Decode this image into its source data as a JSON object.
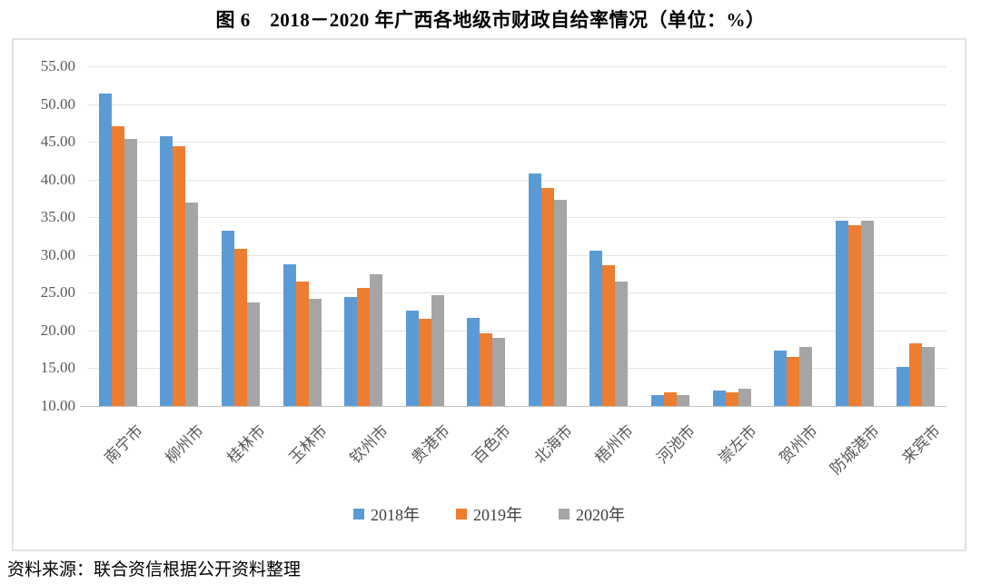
{
  "title": "图 6　2018－2020 年广西各地级市财政自给率情况（单位：%）",
  "source_note": "资料来源：联合资信根据公开资料整理",
  "colors": {
    "series_2018": "#5B9BD5",
    "series_2019": "#ED7D31",
    "series_2020": "#A5A5A5",
    "gridline": "#E4E4E4",
    "baseline": "#C0C0C0",
    "axis_text": "#595959",
    "chart_border": "#E3E3E3"
  },
  "chart_data": {
    "type": "bar",
    "title": "图 6　2018－2020 年广西各地级市财政自给率情况（单位：%）",
    "unit": "%",
    "categories": [
      "南宁市",
      "柳州市",
      "桂林市",
      "玉林市",
      "钦州市",
      "贵港市",
      "百色市",
      "北海市",
      "梧州市",
      "河池市",
      "崇左市",
      "贺州市",
      "防城港市",
      "来宾市"
    ],
    "series": [
      {
        "name": "2018年",
        "color": "#5B9BD5",
        "values": [
          51.4,
          45.7,
          33.2,
          28.8,
          24.4,
          22.6,
          21.7,
          40.8,
          30.6,
          11.4,
          12.1,
          17.3,
          34.5,
          15.2
        ]
      },
      {
        "name": "2019年",
        "color": "#ED7D31",
        "values": [
          47.1,
          44.4,
          30.8,
          26.5,
          25.6,
          21.6,
          19.6,
          38.9,
          28.7,
          11.8,
          11.8,
          16.5,
          33.9,
          18.3
        ]
      },
      {
        "name": "2020年",
        "color": "#A5A5A5",
        "values": [
          45.4,
          37.0,
          23.7,
          24.2,
          27.5,
          24.7,
          19.0,
          37.3,
          26.5,
          11.5,
          12.3,
          17.8,
          34.5,
          17.8
        ]
      }
    ],
    "ylim": [
      10,
      55
    ],
    "y_ticks": [
      "55.00",
      "50.00",
      "45.00",
      "40.00",
      "35.00",
      "30.00",
      "25.00",
      "20.00",
      "15.00",
      "10.00"
    ],
    "grid": true,
    "legend_position": "bottom"
  }
}
